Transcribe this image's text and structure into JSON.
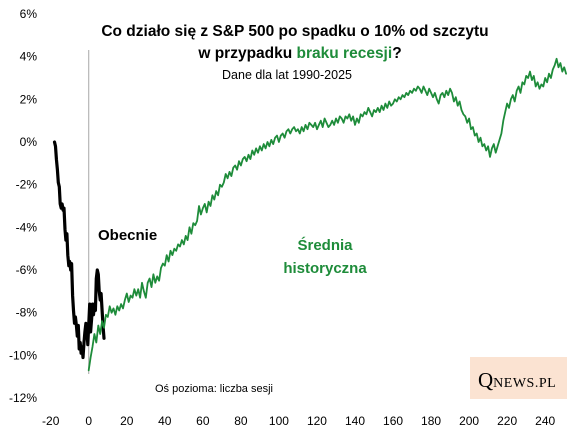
{
  "chart_data": {
    "type": "line",
    "title": {
      "line1": "Co działo się z S&P 500 po spadku o 10% od szczytu",
      "line2_prefix": "w przypadku ",
      "line2_accent": "braku recesji",
      "line2_suffix": "?"
    },
    "subtitle": "Dane dla lat 1990-2025",
    "xlabel_note": "Oś pozioma: liczba sesji",
    "xlim": [
      -23,
      252
    ],
    "ylim": [
      -12,
      6
    ],
    "x_ticks": [
      -20,
      0,
      20,
      40,
      60,
      80,
      100,
      120,
      140,
      160,
      180,
      200,
      220,
      240
    ],
    "y_ticks": [
      -12,
      -10,
      -8,
      -6,
      -4,
      -2,
      0,
      2,
      4,
      6
    ],
    "y_tick_suffix": "%",
    "grid": false,
    "colors": {
      "current": "#000000",
      "average": "#1e8c3a",
      "vline": "#a6a6a6"
    },
    "series": [
      {
        "name": "Obecnie",
        "color": "#000000",
        "points": [
          [
            -18,
            0.0
          ],
          [
            -17.5,
            -0.2
          ],
          [
            -17,
            -0.8
          ],
          [
            -16.5,
            -1.3
          ],
          [
            -16,
            -1.9
          ],
          [
            -15.5,
            -2.1
          ],
          [
            -15,
            -2.9
          ],
          [
            -14.5,
            -3.1
          ],
          [
            -14,
            -2.9
          ],
          [
            -13.5,
            -3.2
          ],
          [
            -13,
            -3.1
          ],
          [
            -12.5,
            -4.1
          ],
          [
            -12,
            -4.6
          ],
          [
            -11.5,
            -4.3
          ],
          [
            -11,
            -5.3
          ],
          [
            -10.5,
            -5.8
          ],
          [
            -10,
            -5.6
          ],
          [
            -9.5,
            -6.0
          ],
          [
            -9,
            -5.7
          ],
          [
            -8.5,
            -7.2
          ],
          [
            -8,
            -7.9
          ],
          [
            -7.5,
            -8.5
          ],
          [
            -7,
            -8.2
          ],
          [
            -6.5,
            -8.6
          ],
          [
            -6,
            -9.1
          ],
          [
            -5.5,
            -8.6
          ],
          [
            -5,
            -9.7
          ],
          [
            -4.5,
            -9.4
          ],
          [
            -4,
            -9.9
          ],
          [
            -3.5,
            -9.6
          ],
          [
            -3,
            -10.1
          ],
          [
            -2.5,
            -9.4
          ],
          [
            -2,
            -8.9
          ],
          [
            -1.5,
            -8.5
          ],
          [
            -1,
            -8.7
          ],
          [
            -0.5,
            -9.5
          ],
          [
            0,
            -8.6
          ],
          [
            0.5,
            -7.6
          ],
          [
            1,
            -8.9
          ],
          [
            1.5,
            -8.3
          ],
          [
            2,
            -7.6
          ],
          [
            2.5,
            -8.1
          ],
          [
            3,
            -7.6
          ],
          [
            3.5,
            -7.9
          ],
          [
            4,
            -6.4
          ],
          [
            4.5,
            -6.0
          ],
          [
            5,
            -6.2
          ],
          [
            5.5,
            -7.0
          ],
          [
            6,
            -7.4
          ],
          [
            6.5,
            -7.1
          ],
          [
            7,
            -7.9
          ],
          [
            7.5,
            -8.6
          ],
          [
            8,
            -9.2
          ]
        ]
      },
      {
        "name": "Średnia historyczna",
        "label_line1": "Średnia",
        "label_line2": "historyczna",
        "color": "#1e8c3a",
        "points": [
          [
            0,
            -10.7
          ],
          [
            1,
            -10.1
          ],
          [
            2,
            -9.6
          ],
          [
            3,
            -9.0
          ],
          [
            4,
            -9.4
          ],
          [
            5,
            -8.6
          ],
          [
            6,
            -9.0
          ],
          [
            7,
            -8.4
          ],
          [
            8,
            -8.7
          ],
          [
            9,
            -8.1
          ],
          [
            10,
            -8.2
          ],
          [
            11,
            -7.7
          ],
          [
            12,
            -8.0
          ],
          [
            13,
            -7.8
          ],
          [
            14,
            -8.1
          ],
          [
            15,
            -7.7
          ],
          [
            16,
            -7.9
          ],
          [
            17,
            -7.6
          ],
          [
            18,
            -7.8
          ],
          [
            19,
            -7.4
          ],
          [
            20,
            -7.1
          ],
          [
            21,
            -7.5
          ],
          [
            22,
            -7.2
          ],
          [
            23,
            -7.3
          ],
          [
            24,
            -6.9
          ],
          [
            25,
            -7.2
          ],
          [
            26,
            -6.9
          ],
          [
            27,
            -7.3
          ],
          [
            28,
            -6.6
          ],
          [
            29,
            -7.0
          ],
          [
            30,
            -7.3
          ],
          [
            31,
            -6.6
          ],
          [
            32,
            -6.4
          ],
          [
            33,
            -6.8
          ],
          [
            34,
            -6.2
          ],
          [
            35,
            -6.6
          ],
          [
            36,
            -6.3
          ],
          [
            37,
            -6.5
          ],
          [
            38,
            -5.9
          ],
          [
            39,
            -5.7
          ],
          [
            40,
            -5.8
          ],
          [
            41,
            -5.3
          ],
          [
            42,
            -5.6
          ],
          [
            43,
            -5.1
          ],
          [
            44,
            -5.3
          ],
          [
            45,
            -5.0
          ],
          [
            46,
            -5.1
          ],
          [
            47,
            -4.8
          ],
          [
            48,
            -4.9
          ],
          [
            49,
            -4.6
          ],
          [
            50,
            -4.8
          ],
          [
            51,
            -4.4
          ],
          [
            52,
            -4.6
          ],
          [
            53,
            -4.0
          ],
          [
            54,
            -4.3
          ],
          [
            55,
            -3.8
          ],
          [
            56,
            -3.9
          ],
          [
            57,
            -3.7
          ],
          [
            58,
            -3.0
          ],
          [
            59,
            -3.4
          ],
          [
            60,
            -3.1
          ],
          [
            61,
            -2.9
          ],
          [
            62,
            -3.3
          ],
          [
            63,
            -2.8
          ],
          [
            64,
            -3.0
          ],
          [
            65,
            -2.5
          ],
          [
            66,
            -2.7
          ],
          [
            67,
            -2.3
          ],
          [
            68,
            -2.5
          ],
          [
            69,
            -2.0
          ],
          [
            70,
            -2.1
          ],
          [
            71,
            -1.9
          ],
          [
            72,
            -1.5
          ],
          [
            73,
            -1.7
          ],
          [
            74,
            -1.4
          ],
          [
            75,
            -1.6
          ],
          [
            76,
            -1.2
          ],
          [
            77,
            -1.1
          ],
          [
            78,
            -1.3
          ],
          [
            79,
            -0.9
          ],
          [
            80,
            -1.1
          ],
          [
            81,
            -0.8
          ],
          [
            82,
            -0.7
          ],
          [
            83,
            -0.9
          ],
          [
            84,
            -0.6
          ],
          [
            85,
            -0.8
          ],
          [
            86,
            -0.4
          ],
          [
            87,
            -0.6
          ],
          [
            88,
            -0.3
          ],
          [
            89,
            -0.5
          ],
          [
            90,
            -0.2
          ],
          [
            91,
            -0.4
          ],
          [
            92,
            -0.1
          ],
          [
            93,
            -0.3
          ],
          [
            94,
            0.0
          ],
          [
            95,
            -0.2
          ],
          [
            96,
            0.1
          ],
          [
            97,
            -0.1
          ],
          [
            98,
            0.2
          ],
          [
            99,
            0.3
          ],
          [
            100,
            0.0
          ],
          [
            101,
            0.3
          ],
          [
            102,
            0.4
          ],
          [
            103,
            0.2
          ],
          [
            104,
            0.5
          ],
          [
            105,
            0.6
          ],
          [
            106,
            0.4
          ],
          [
            107,
            0.6
          ],
          [
            108,
            0.7
          ],
          [
            109,
            0.5
          ],
          [
            110,
            0.6
          ],
          [
            111,
            0.4
          ],
          [
            112,
            0.7
          ],
          [
            113,
            0.5
          ],
          [
            114,
            0.8
          ],
          [
            115,
            0.6
          ],
          [
            116,
            0.9
          ],
          [
            117,
            0.8
          ],
          [
            118,
            0.7
          ],
          [
            119,
            0.9
          ],
          [
            120,
            0.6
          ],
          [
            121,
            0.8
          ],
          [
            122,
            1.0
          ],
          [
            123,
            0.7
          ],
          [
            124,
            1.1
          ],
          [
            125,
            0.9
          ],
          [
            126,
            0.7
          ],
          [
            127,
            0.8
          ],
          [
            128,
            1.0
          ],
          [
            129,
            0.8
          ],
          [
            130,
            1.1
          ],
          [
            131,
            0.9
          ],
          [
            132,
            1.2
          ],
          [
            133,
            1.1
          ],
          [
            134,
            0.9
          ],
          [
            135,
            1.2
          ],
          [
            136,
            1.1
          ],
          [
            137,
            1.3
          ],
          [
            138,
            1.0
          ],
          [
            139,
            1.2
          ],
          [
            140,
            0.8
          ],
          [
            141,
            1.1
          ],
          [
            142,
            0.9
          ],
          [
            143,
            1.3
          ],
          [
            144,
            1.2
          ],
          [
            145,
            1.4
          ],
          [
            146,
            1.3
          ],
          [
            147,
            1.6
          ],
          [
            148,
            1.4
          ],
          [
            149,
            1.2
          ],
          [
            150,
            1.5
          ],
          [
            151,
            1.4
          ],
          [
            152,
            1.6
          ],
          [
            153,
            1.4
          ],
          [
            154,
            1.7
          ],
          [
            155,
            1.5
          ],
          [
            156,
            1.8
          ],
          [
            157,
            1.6
          ],
          [
            158,
            1.9
          ],
          [
            159,
            1.7
          ],
          [
            160,
            1.8
          ],
          [
            161,
            2.0
          ],
          [
            162,
            1.9
          ],
          [
            163,
            2.1
          ],
          [
            164,
            2.0
          ],
          [
            165,
            2.2
          ],
          [
            166,
            2.1
          ],
          [
            167,
            2.3
          ],
          [
            168,
            2.2
          ],
          [
            169,
            2.4
          ],
          [
            170,
            2.3
          ],
          [
            171,
            2.5
          ],
          [
            172,
            2.4
          ],
          [
            173,
            2.6
          ],
          [
            174,
            2.5
          ],
          [
            175,
            2.3
          ],
          [
            176,
            2.6
          ],
          [
            177,
            2.4
          ],
          [
            178,
            2.2
          ],
          [
            179,
            2.5
          ],
          [
            180,
            2.3
          ],
          [
            181,
            2.1
          ],
          [
            182,
            2.3
          ],
          [
            183,
            2.0
          ],
          [
            184,
            1.8
          ],
          [
            185,
            2.2
          ],
          [
            186,
            2.3
          ],
          [
            187,
            2.1
          ],
          [
            188,
            2.4
          ],
          [
            189,
            2.2
          ],
          [
            190,
            2.5
          ],
          [
            191,
            2.3
          ],
          [
            192,
            1.9
          ],
          [
            193,
            2.1
          ],
          [
            194,
            1.7
          ],
          [
            195,
            1.9
          ],
          [
            196,
            1.5
          ],
          [
            197,
            1.3
          ],
          [
            198,
            1.2
          ],
          [
            199,
            0.9
          ],
          [
            200,
            1.1
          ],
          [
            201,
            0.6
          ],
          [
            202,
            0.7
          ],
          [
            203,
            0.3
          ],
          [
            204,
            0.4
          ],
          [
            205,
            0.0
          ],
          [
            206,
            0.2
          ],
          [
            207,
            -0.2
          ],
          [
            208,
            -0.1
          ],
          [
            209,
            -0.4
          ],
          [
            210,
            -0.2
          ],
          [
            211,
            -0.7
          ],
          [
            212,
            -0.3
          ],
          [
            213,
            -0.1
          ],
          [
            214,
            -0.5
          ],
          [
            215,
            -0.2
          ],
          [
            216,
            0.1
          ],
          [
            217,
            0.4
          ],
          [
            218,
            1.0
          ],
          [
            219,
            1.4
          ],
          [
            220,
            1.8
          ],
          [
            221,
            1.6
          ],
          [
            222,
            2.0
          ],
          [
            223,
            2.2
          ],
          [
            224,
            1.9
          ],
          [
            225,
            2.4
          ],
          [
            226,
            2.6
          ],
          [
            227,
            2.3
          ],
          [
            228,
            2.8
          ],
          [
            229,
            2.7
          ],
          [
            230,
            3.1
          ],
          [
            231,
            3.0
          ],
          [
            232,
            3.3
          ],
          [
            233,
            2.9
          ],
          [
            234,
            3.1
          ],
          [
            235,
            2.6
          ],
          [
            236,
            2.8
          ],
          [
            237,
            2.5
          ],
          [
            238,
            2.7
          ],
          [
            239,
            2.6
          ],
          [
            240,
            3.0
          ],
          [
            241,
            2.8
          ],
          [
            242,
            3.2
          ],
          [
            243,
            3.0
          ],
          [
            244,
            3.4
          ],
          [
            245,
            3.6
          ],
          [
            246,
            3.9
          ],
          [
            247,
            3.5
          ],
          [
            248,
            3.7
          ],
          [
            249,
            3.3
          ],
          [
            250,
            3.5
          ],
          [
            251,
            3.2
          ]
        ]
      }
    ]
  },
  "logo": {
    "initial": "Q",
    "rest": "NEWS.PL"
  }
}
